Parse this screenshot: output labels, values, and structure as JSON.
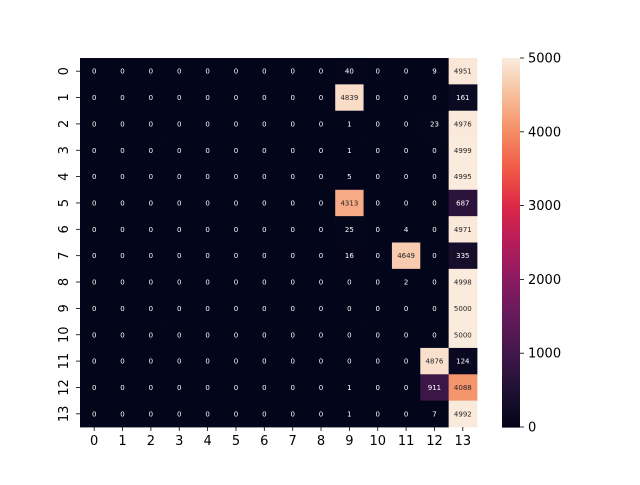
{
  "chart_data": {
    "type": "heatmap",
    "title": "",
    "xlabel": "",
    "ylabel": "",
    "x_categories": [
      "0",
      "1",
      "2",
      "3",
      "4",
      "5",
      "6",
      "7",
      "8",
      "9",
      "10",
      "11",
      "12",
      "13"
    ],
    "y_categories": [
      "0",
      "1",
      "2",
      "3",
      "4",
      "5",
      "6",
      "7",
      "8",
      "9",
      "10",
      "11",
      "12",
      "13"
    ],
    "values": [
      [
        0,
        0,
        0,
        0,
        0,
        0,
        0,
        0,
        0,
        40,
        0,
        0,
        9,
        4951
      ],
      [
        0,
        0,
        0,
        0,
        0,
        0,
        0,
        0,
        0,
        4839,
        0,
        0,
        0,
        161
      ],
      [
        0,
        0,
        0,
        0,
        0,
        0,
        0,
        0,
        0,
        1,
        0,
        0,
        23,
        4976
      ],
      [
        0,
        0,
        0,
        0,
        0,
        0,
        0,
        0,
        0,
        1,
        0,
        0,
        0,
        4999
      ],
      [
        0,
        0,
        0,
        0,
        0,
        0,
        0,
        0,
        0,
        5,
        0,
        0,
        0,
        4995
      ],
      [
        0,
        0,
        0,
        0,
        0,
        0,
        0,
        0,
        0,
        4313,
        0,
        0,
        0,
        687
      ],
      [
        0,
        0,
        0,
        0,
        0,
        0,
        0,
        0,
        0,
        25,
        0,
        4,
        0,
        4971
      ],
      [
        0,
        0,
        0,
        0,
        0,
        0,
        0,
        0,
        0,
        16,
        0,
        4649,
        0,
        335
      ],
      [
        0,
        0,
        0,
        0,
        0,
        0,
        0,
        0,
        0,
        0,
        0,
        2,
        0,
        4998
      ],
      [
        0,
        0,
        0,
        0,
        0,
        0,
        0,
        0,
        0,
        0,
        0,
        0,
        0,
        5000
      ],
      [
        0,
        0,
        0,
        0,
        0,
        0,
        0,
        0,
        0,
        0,
        0,
        0,
        0,
        5000
      ],
      [
        0,
        0,
        0,
        0,
        0,
        0,
        0,
        0,
        0,
        0,
        0,
        0,
        4876,
        124
      ],
      [
        0,
        0,
        0,
        0,
        0,
        0,
        0,
        0,
        0,
        1,
        0,
        0,
        911,
        4088
      ],
      [
        0,
        0,
        0,
        0,
        0,
        0,
        0,
        0,
        0,
        1,
        0,
        0,
        7,
        4992
      ]
    ],
    "colorbar": {
      "range": [
        0,
        5000
      ],
      "ticks": [
        0,
        1000,
        2000,
        3000,
        4000,
        5000
      ],
      "colormap": "rocket"
    },
    "grid": false,
    "annotations": true
  }
}
